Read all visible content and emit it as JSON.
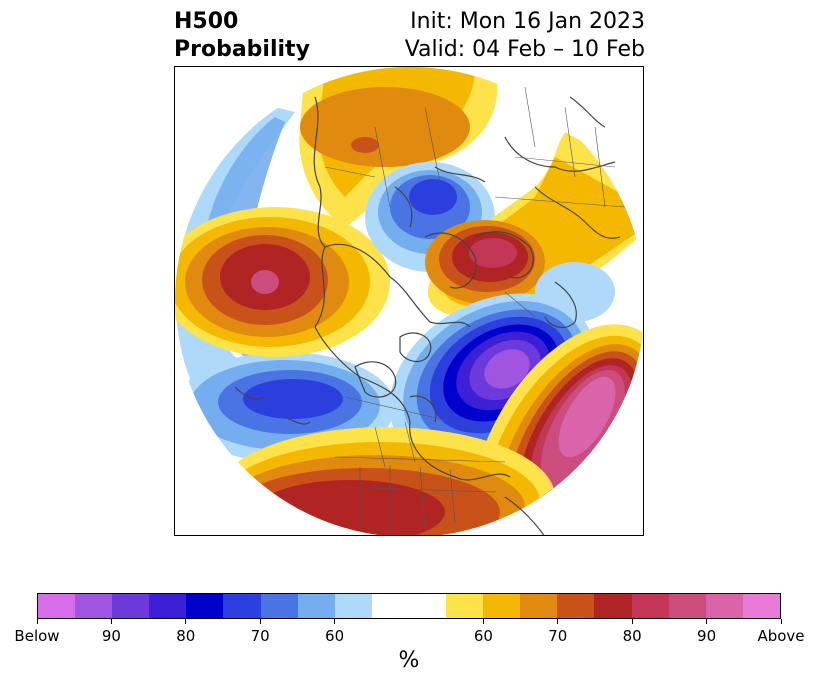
{
  "title": {
    "left_line1": "H500",
    "left_line2": "Probability",
    "right_line1": "Init: Mon 16 Jan 2023",
    "right_line2": "Valid: 04 Feb – 10 Feb"
  },
  "map": {
    "projection": "north-polar-stereographic",
    "ocean_color": "#ffffff",
    "coastline_color": "#444444",
    "anomalies": [
      {
        "region": "north-pacific-gulf-of-alaska",
        "sign": "above",
        "peak_percent": 90
      },
      {
        "region": "north-atlantic-south-of-greenland",
        "sign": "below",
        "peak_percent": 90
      },
      {
        "region": "central-north-pacific-south",
        "sign": "below",
        "peak_percent": 80
      },
      {
        "region": "east-siberia-chukotka",
        "sign": "above",
        "peak_percent": 70
      },
      {
        "region": "barents-scandinavia",
        "sign": "above",
        "peak_percent": 80
      },
      {
        "region": "arctic-ocean-central",
        "sign": "below",
        "peak_percent": 80
      },
      {
        "region": "southern-united-states",
        "sign": "above",
        "peak_percent": 80
      },
      {
        "region": "subtropical-east-atlantic",
        "sign": "above",
        "peak_percent": 90
      },
      {
        "region": "north-pacific-western",
        "sign": "below",
        "peak_percent": 60
      }
    ]
  },
  "colorbar": {
    "colors": [
      "#d56ee8",
      "#9f55e0",
      "#6c3adb",
      "#3d1fd6",
      "#0000cd",
      "#2a3fdd",
      "#4a74e3",
      "#75aeef",
      "#aed9fb",
      "#ffffff",
      "#ffffff",
      "#fde24a",
      "#f5b800",
      "#e08b10",
      "#c8521a",
      "#b02424",
      "#c33655",
      "#cb4d7e",
      "#d964aa",
      "#e87ad8"
    ],
    "tick_labels": [
      "Below",
      "90",
      "80",
      "70",
      "60",
      "60",
      "70",
      "80",
      "90",
      "Above"
    ],
    "unit": "%"
  }
}
